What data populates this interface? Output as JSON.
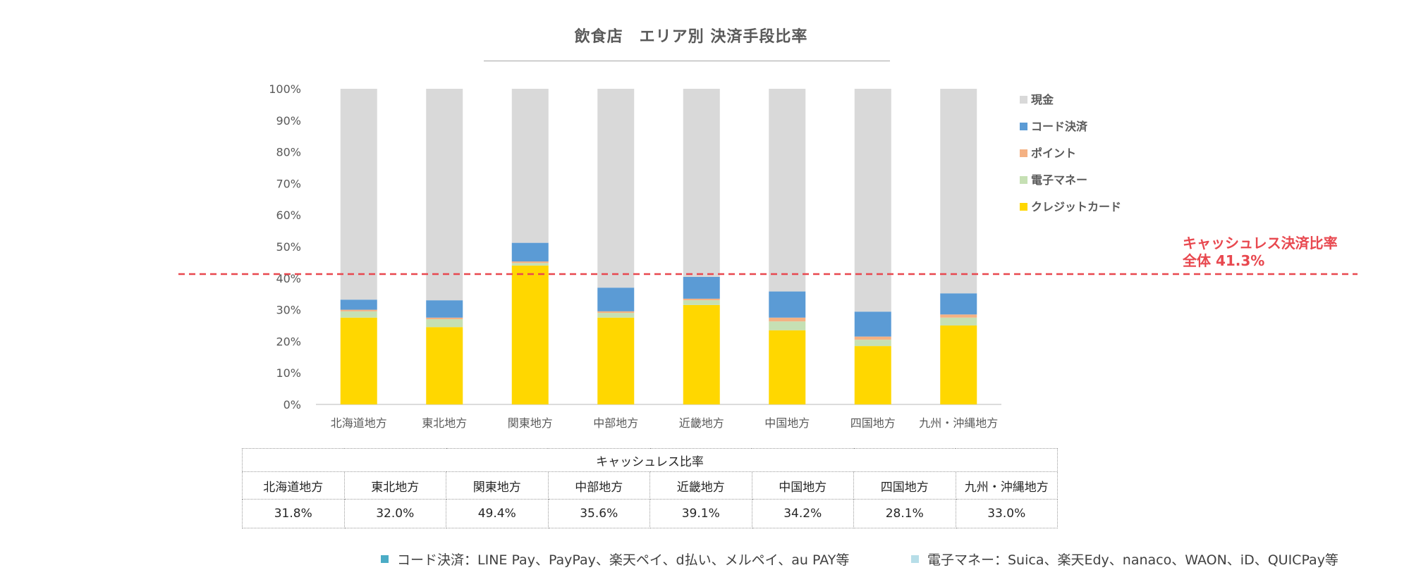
{
  "chart_data": {
    "type": "bar",
    "stacked": true,
    "title": "飲食店　エリア別 決済手段比率",
    "categories": [
      "北海道地方",
      "東北地方",
      "関東地方",
      "中部地方",
      "近畿地方",
      "中国地方",
      "四国地方",
      "九州・沖縄地方"
    ],
    "series": [
      {
        "name": "クレジットカード",
        "color": "#ffd700",
        "values": [
          27.5,
          24.5,
          44.0,
          27.5,
          31.5,
          23.5,
          18.5,
          25.0
        ]
      },
      {
        "name": "電子マネー",
        "color": "#c6e0b4",
        "values": [
          2.0,
          2.5,
          0.8,
          1.5,
          1.5,
          2.8,
          2.0,
          2.5
        ]
      },
      {
        "name": "ポイント",
        "color": "#f4b183",
        "values": [
          0.5,
          0.5,
          0.5,
          0.5,
          0.5,
          1.2,
          1.0,
          1.0
        ]
      },
      {
        "name": "コード決済",
        "color": "#5b9bd5",
        "values": [
          3.2,
          5.5,
          5.9,
          7.5,
          6.9,
          8.3,
          7.9,
          6.7
        ]
      },
      {
        "name": "現金",
        "color": "#d9d9d9",
        "values": [
          66.8,
          67.0,
          48.8,
          63.0,
          59.6,
          64.2,
          70.6,
          64.8
        ]
      }
    ],
    "legend_order": [
      "現金",
      "コード決済",
      "ポイント",
      "電子マネー",
      "クレジットカード"
    ],
    "ylim": [
      0,
      100
    ],
    "yticks": [
      "0%",
      "10%",
      "20%",
      "30%",
      "40%",
      "50%",
      "60%",
      "70%",
      "80%",
      "90%",
      "100%"
    ],
    "xlabel": "",
    "ylabel": "",
    "legend_position": "right",
    "reference_line": {
      "value": 41.3,
      "color": "#e8484f",
      "label_line1": "キャッシュレス決済比率",
      "label_line2": "全体 41.3%"
    }
  },
  "table": {
    "caption": "キャッシュレス比率",
    "headers": [
      "北海道地方",
      "東北地方",
      "関東地方",
      "中部地方",
      "近畿地方",
      "中国地方",
      "四国地方",
      "九州・沖縄地方"
    ],
    "values": [
      "31.8%",
      "32.0%",
      "49.4%",
      "35.6%",
      "39.1%",
      "34.2%",
      "28.1%",
      "33.0%"
    ]
  },
  "footnotes": [
    {
      "text": "コード決済：LINE Pay、PayPay、楽天ペイ、d払い、メルペイ、au PAY等",
      "color": "#4bacc6"
    },
    {
      "text": "電子マネー：Suica、楽天Edy、nanaco、WAON、iD、QUICPay等",
      "color": "#b7dee8"
    }
  ]
}
